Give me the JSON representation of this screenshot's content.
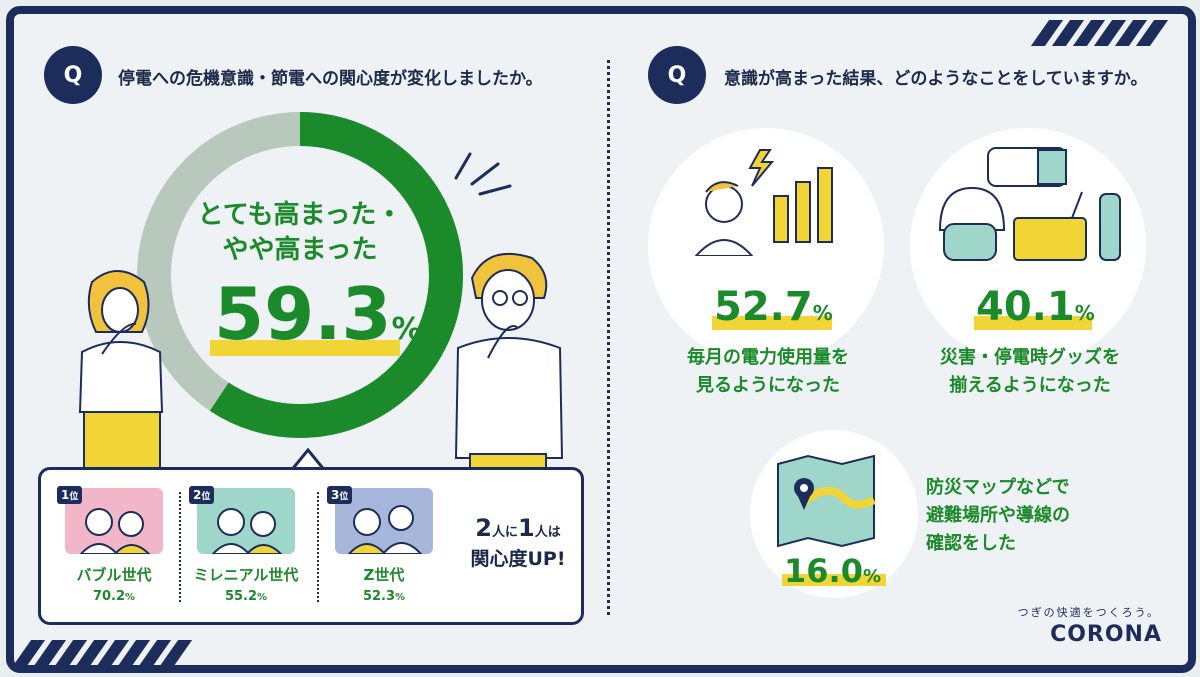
{
  "questions": {
    "left": {
      "badge": "Q",
      "text": "停電への危機意識・節電への関心度が変化しましたか。"
    },
    "right": {
      "badge": "Q",
      "text": "意識が高まった結果、どのようなことをしていますか。"
    }
  },
  "donut": {
    "title_line1": "とても高まった・",
    "title_line2": "やや高まった",
    "value": "59.3",
    "unit": "%",
    "fraction": 0.593,
    "colors": {
      "filled": "#1b8a2a",
      "rest": "#b9c8bd"
    }
  },
  "ranking": [
    {
      "rank": "1",
      "rank_suffix": "位",
      "name": "バブル世代",
      "value": "70.2",
      "unit": "%",
      "bg": "#f2b6c9"
    },
    {
      "rank": "2",
      "rank_suffix": "位",
      "name": "ミレニアル世代",
      "value": "55.2",
      "unit": "%",
      "bg": "#9ed7c9"
    },
    {
      "rank": "3",
      "rank_suffix": "位",
      "name": "Z世代",
      "value": "52.3",
      "unit": "%",
      "bg": "#a7b7dc"
    }
  ],
  "callout": {
    "n1": "2",
    "p1": "人に",
    "n2": "1",
    "p2": "人は",
    "line2": "関心度UP!"
  },
  "results": [
    {
      "value": "52.7",
      "unit": "%",
      "line1": "毎月の電力使用量を",
      "line2": "見るようになった",
      "icon": "thinking-person-bar-chart-icon"
    },
    {
      "value": "40.1",
      "unit": "%",
      "line1": "災害・停電時グッズを",
      "line2": "揃えるようになった",
      "icon": "emergency-goods-icon"
    },
    {
      "value": "16.0",
      "unit": "%",
      "line1": "防災マップなどで",
      "line2": "避難場所や導線の",
      "line3": "確認をした",
      "icon": "map-icon"
    }
  ],
  "brand": {
    "tagline": "つぎの快適をつくろう。",
    "logo": "CORONA"
  },
  "colors": {
    "navy": "#1d2d5b",
    "green": "#1b8a2a",
    "yellow": "#f1d537"
  }
}
